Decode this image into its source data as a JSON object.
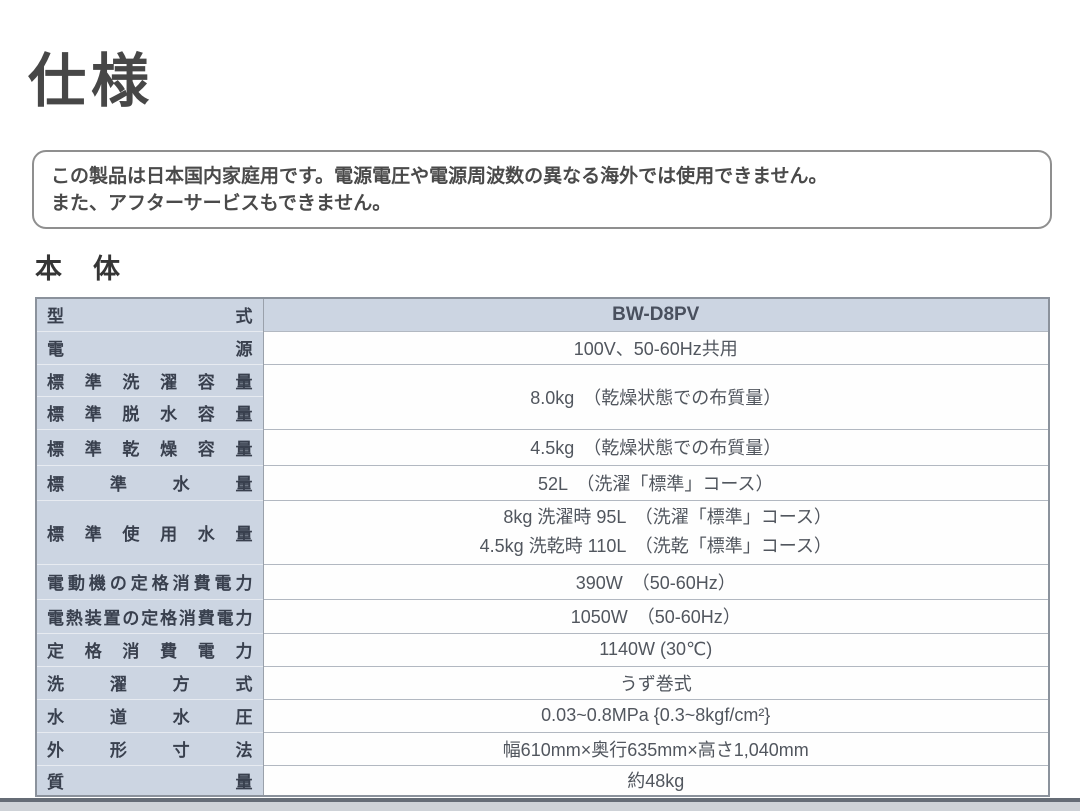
{
  "page": {
    "title": "仕様",
    "notice_lines": [
      "この製品は日本国内家庭用です。電源電圧や電源周波数の異なる海外では使用できません。",
      "また、アフターサービスもできません。"
    ],
    "section_title": "本　体"
  },
  "table": {
    "rows": [
      {
        "label": "型式",
        "value": "BW-D8PV"
      },
      {
        "label": "電源",
        "value": "100V、50-60Hz共用"
      },
      {
        "label": "標準洗濯容量",
        "value": "8.0kg　（乾燥状態での布質量）"
      },
      {
        "label": "標準脱水容量"
      },
      {
        "label": "標準乾燥容量",
        "value": "4.5kg　（乾燥状態での布質量）"
      },
      {
        "label": "標準水量",
        "value": "52L　（洗濯「標準」コース）"
      },
      {
        "label": "標準使用水量",
        "value_lines": [
          "8kg 洗濯時 95L　（洗濯「標準」コース）",
          "4.5kg 洗乾時 110L　（洗乾「標準」コース）"
        ]
      },
      {
        "label": "電動機の定格消費電力",
        "value": "390W　（50-60Hz）"
      },
      {
        "label": "電熱装置の定格消費電力",
        "value": "1050W　（50-60Hz）"
      },
      {
        "label": "定格消費電力",
        "value": "1140W (30℃)"
      },
      {
        "label": "洗濯方式",
        "value": "うず巻式"
      },
      {
        "label": "水道水圧",
        "value": "0.03~0.8MPa {0.3~8kgf/cm²}"
      },
      {
        "label": "外形寸法",
        "value": "幅610mm×奥行635mm×高さ1,040mm"
      },
      {
        "label": "質量",
        "value": "約48kg"
      }
    ]
  },
  "colors": {
    "label_cell_bg": "#ccd5e2",
    "table_border": "#8b929c",
    "label_text": "#39404e",
    "value_text": "#51565e",
    "title_text": "#474747"
  }
}
